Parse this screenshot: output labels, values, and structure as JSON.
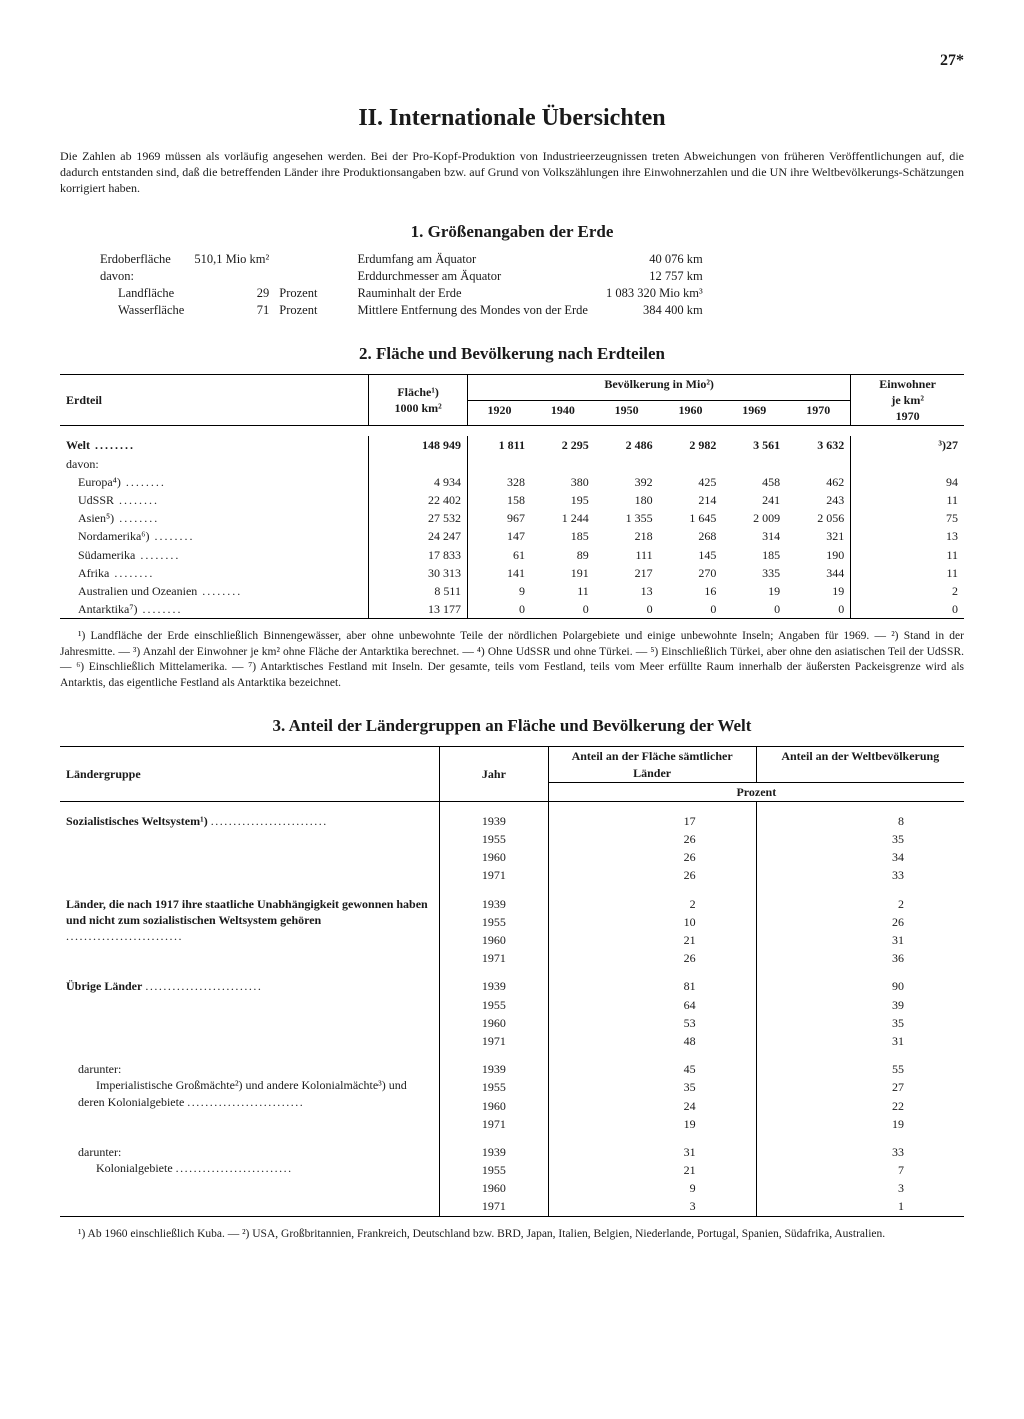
{
  "page_number": "27*",
  "title": "II. Internationale Übersichten",
  "intro": "Die Zahlen ab 1969 müssen als vorläufig angesehen werden. Bei der Pro-Kopf-Produktion von Industrieerzeugnissen treten Abweichungen von früheren Veröffentlichungen auf, die dadurch entstanden sind, daß die betreffenden Länder ihre Produktionsangaben bzw. auf Grund von Volkszählungen ihre Einwohnerzahlen und die UN ihre Weltbevölkerungs-Schätzungen korrigiert haben.",
  "sec1": {
    "title": "1. Größenangaben der Erde",
    "left": [
      [
        "Erdoberfläche",
        "510,1 Mio km²",
        ""
      ],
      [
        "davon:",
        "",
        ""
      ],
      [
        "Landfläche",
        "29",
        "Prozent"
      ],
      [
        "Wasserfläche",
        "71",
        "Prozent"
      ]
    ],
    "right": [
      [
        "Erdumfang am Äquator",
        "40 076 km"
      ],
      [
        "Erddurchmesser am Äquator",
        "12 757 km"
      ],
      [
        "Rauminhalt der Erde",
        "1 083 320 Mio km³"
      ],
      [
        "Mittlere Entfernung des Mondes von der Erde",
        "384 400 km"
      ]
    ]
  },
  "sec2": {
    "title": "2. Fläche und Bevölkerung nach Erdteilen",
    "head": {
      "c0": "Erdteil",
      "c1": "Fläche¹)\n1000 km²",
      "pop": "Bevölkerung in Mio²)",
      "years": [
        "1920",
        "1940",
        "1950",
        "1960",
        "1969",
        "1970"
      ],
      "dens": "Einwohner\nje km²\n1970"
    },
    "rows": [
      {
        "label": "Welt",
        "vals": [
          "148 949",
          "1 811",
          "2 295",
          "2 486",
          "2 982",
          "3 561",
          "3 632",
          "³)27"
        ],
        "bold": true
      },
      {
        "label": "davon:",
        "vals": [
          "",
          "",
          "",
          "",
          "",
          "",
          "",
          ""
        ]
      },
      {
        "label": "Europa⁴)",
        "vals": [
          "4 934",
          "328",
          "380",
          "392",
          "425",
          "458",
          "462",
          "94"
        ],
        "indent": true
      },
      {
        "label": "UdSSR",
        "vals": [
          "22 402",
          "158",
          "195",
          "180",
          "214",
          "241",
          "243",
          "11"
        ],
        "indent": true
      },
      {
        "label": "Asien⁵)",
        "vals": [
          "27 532",
          "967",
          "1 244",
          "1 355",
          "1 645",
          "2 009",
          "2 056",
          "75"
        ],
        "indent": true
      },
      {
        "label": "Nordamerika⁶)",
        "vals": [
          "24 247",
          "147",
          "185",
          "218",
          "268",
          "314",
          "321",
          "13"
        ],
        "indent": true
      },
      {
        "label": "Südamerika",
        "vals": [
          "17 833",
          "61",
          "89",
          "111",
          "145",
          "185",
          "190",
          "11"
        ],
        "indent": true
      },
      {
        "label": "Afrika",
        "vals": [
          "30 313",
          "141",
          "191",
          "217",
          "270",
          "335",
          "344",
          "11"
        ],
        "indent": true
      },
      {
        "label": "Australien und Ozeanien",
        "vals": [
          "8 511",
          "9",
          "11",
          "13",
          "16",
          "19",
          "19",
          "2"
        ],
        "indent": true
      },
      {
        "label": "Antarktika⁷)",
        "vals": [
          "13 177",
          "0",
          "0",
          "0",
          "0",
          "0",
          "0",
          "0"
        ],
        "indent": true
      }
    ],
    "footnotes": "¹) Landfläche der Erde einschließlich Binnengewässer, aber ohne unbewohnte Teile der nördlichen Polargebiete und einige unbewohnte Inseln; Angaben für 1969. — ²) Stand in der Jahresmitte. — ³) Anzahl der Einwohner je km² ohne Fläche der Antarktika berechnet. — ⁴) Ohne UdSSR und ohne Türkei. — ⁵) Einschließlich Türkei, aber ohne den asiatischen Teil der UdSSR. — ⁶) Einschließlich Mittelamerika. — ⁷) Antarktisches Festland mit Inseln. Der gesamte, teils vom Festland, teils vom Meer erfüllte Raum innerhalb der äußersten Packeisgrenze wird als Antarktis, das eigentliche Festland als Antarktika bezeichnet."
  },
  "sec3": {
    "title": "3. Anteil der Ländergruppen an Fläche und Bevölkerung der Welt",
    "head": {
      "c0": "Ländergruppe",
      "c1": "Jahr",
      "c2": "Anteil an der Fläche sämtlicher Länder",
      "c3": "Anteil an der Weltbevölkerung",
      "unit": "Prozent"
    },
    "groups": [
      {
        "label": "Sozialistisches Weltsystem¹)",
        "bold": true,
        "rows": [
          [
            "1939",
            "17",
            "8"
          ],
          [
            "1955",
            "26",
            "35"
          ],
          [
            "1960",
            "26",
            "34"
          ],
          [
            "1971",
            "26",
            "33"
          ]
        ]
      },
      {
        "label": "Länder, die nach 1917 ihre staatliche Unabhängigkeit gewonnen haben und nicht zum sozialistischen Weltsystem gehören",
        "bold": true,
        "rows": [
          [
            "1939",
            "2",
            "2"
          ],
          [
            "1955",
            "10",
            "26"
          ],
          [
            "1960",
            "21",
            "31"
          ],
          [
            "1971",
            "26",
            "36"
          ]
        ]
      },
      {
        "label": "Übrige Länder",
        "bold": true,
        "rows": [
          [
            "1939",
            "81",
            "90"
          ],
          [
            "1955",
            "64",
            "39"
          ],
          [
            "1960",
            "53",
            "35"
          ],
          [
            "1971",
            "48",
            "31"
          ]
        ]
      },
      {
        "label": "darunter:\nImperialistische Großmächte²) und andere Kolonialmächte³) und deren Kolonialgebiete",
        "bold": false,
        "indent": true,
        "rows": [
          [
            "1939",
            "45",
            "55"
          ],
          [
            "1955",
            "35",
            "27"
          ],
          [
            "1960",
            "24",
            "22"
          ],
          [
            "1971",
            "19",
            "19"
          ]
        ]
      },
      {
        "label": "darunter:\nKolonialgebiete",
        "bold": false,
        "indent": true,
        "rows": [
          [
            "1939",
            "31",
            "33"
          ],
          [
            "1955",
            "21",
            "7"
          ],
          [
            "1960",
            "9",
            "3"
          ],
          [
            "1971",
            "3",
            "1"
          ]
        ]
      }
    ],
    "footnotes": "¹) Ab 1960 einschließlich Kuba. — ²) USA, Großbritannien, Frankreich, Deutschland bzw. BRD, Japan, Italien, Belgien, Niederlande, Portugal, Spanien, Südafrika, Australien."
  }
}
